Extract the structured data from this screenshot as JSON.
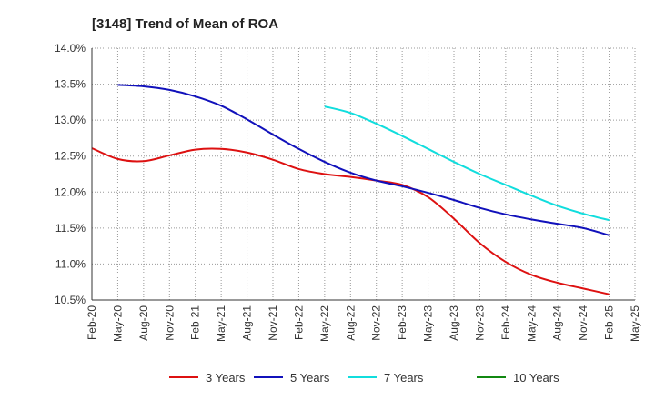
{
  "chart_data": {
    "type": "line",
    "title": "[3148]  Trend of Mean of ROA",
    "xlabel": "",
    "ylabel": "",
    "ylim": [
      10.5,
      14.0
    ],
    "y_ticks": [
      "14.0%",
      "13.5%",
      "13.0%",
      "12.5%",
      "12.0%",
      "11.5%",
      "11.0%",
      "10.5%"
    ],
    "y_tick_values": [
      14.0,
      13.5,
      13.0,
      12.5,
      12.0,
      11.5,
      11.0,
      10.5
    ],
    "categories": [
      "Feb-20",
      "May-20",
      "Aug-20",
      "Nov-20",
      "Feb-21",
      "May-21",
      "Aug-21",
      "Nov-21",
      "Feb-22",
      "May-22",
      "Aug-22",
      "Nov-22",
      "Feb-23",
      "May-23",
      "Aug-23",
      "Nov-23",
      "Feb-24",
      "May-24",
      "Aug-24",
      "Nov-24",
      "Feb-25",
      "May-25"
    ],
    "series": [
      {
        "name": "3 Years",
        "color": "#dd1111",
        "values": [
          12.61,
          12.46,
          12.43,
          12.51,
          12.59,
          12.6,
          12.55,
          12.45,
          12.32,
          12.25,
          12.21,
          12.16,
          12.1,
          11.93,
          11.63,
          11.29,
          11.03,
          10.85,
          10.74,
          10.66,
          10.58,
          null
        ]
      },
      {
        "name": "5 Years",
        "color": "#1111bb",
        "values": [
          null,
          13.49,
          13.47,
          13.42,
          13.33,
          13.2,
          13.01,
          12.8,
          12.6,
          12.42,
          12.27,
          12.16,
          12.08,
          11.99,
          11.89,
          11.78,
          11.69,
          11.62,
          11.56,
          11.5,
          11.4,
          null
        ]
      },
      {
        "name": "7 Years",
        "color": "#11dddd",
        "values": [
          null,
          null,
          null,
          null,
          null,
          null,
          null,
          null,
          null,
          13.19,
          13.1,
          12.95,
          12.78,
          12.6,
          12.42,
          12.25,
          12.1,
          11.95,
          11.81,
          11.7,
          11.61,
          null
        ]
      },
      {
        "name": "10 Years",
        "color": "#118811",
        "values": [
          null,
          null,
          null,
          null,
          null,
          null,
          null,
          null,
          null,
          null,
          null,
          null,
          null,
          null,
          null,
          null,
          null,
          null,
          null,
          null,
          null,
          null
        ]
      }
    ],
    "legend_position": "bottom",
    "grid": true
  }
}
